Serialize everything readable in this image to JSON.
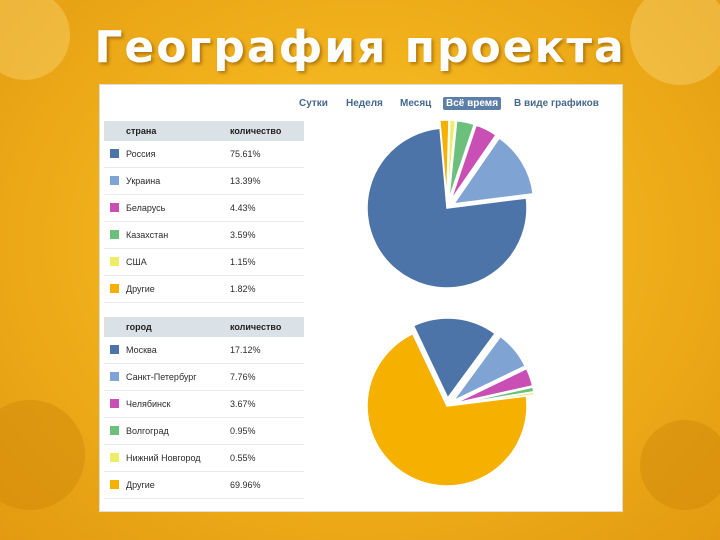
{
  "slide": {
    "title": "География проекта"
  },
  "tabs": [
    {
      "label": "Сутки",
      "active": false
    },
    {
      "label": "Неделя",
      "active": false
    },
    {
      "label": "Месяц",
      "active": false
    },
    {
      "label": "Всё время",
      "active": true
    },
    {
      "label": "В виде графиков",
      "active": false
    }
  ],
  "countries": {
    "header": {
      "name": "страна",
      "value": "количество"
    },
    "rows": [
      {
        "name": "Россия",
        "value": "75.61%",
        "color": "#4d74a8"
      },
      {
        "name": "Украина",
        "value": "13.39%",
        "color": "#7fa3d3"
      },
      {
        "name": "Беларусь",
        "value": "4.43%",
        "color": "#c94fb5"
      },
      {
        "name": "Казахстан",
        "value": "3.59%",
        "color": "#6cc07c"
      },
      {
        "name": "США",
        "value": "1.15%",
        "color": "#eded6a"
      },
      {
        "name": "Другие",
        "value": "1.82%",
        "color": "#f5b000"
      }
    ]
  },
  "cities": {
    "header": {
      "name": "город",
      "value": "количество"
    },
    "rows": [
      {
        "name": "Москва",
        "value": "17.12%",
        "color": "#4d74a8"
      },
      {
        "name": "Санкт-Петербург",
        "value": "7.76%",
        "color": "#7fa3d3"
      },
      {
        "name": "Челябинск",
        "value": "3.67%",
        "color": "#c94fb5"
      },
      {
        "name": "Волгоград",
        "value": "0.95%",
        "color": "#6cc07c"
      },
      {
        "name": "Нижний Новгород",
        "value": "0.55%",
        "color": "#eded6a"
      },
      {
        "name": "Другие",
        "value": "69.96%",
        "color": "#f5b000"
      }
    ]
  },
  "chart_data": [
    {
      "type": "pie",
      "categories": [
        "Россия",
        "Украина",
        "Беларусь",
        "Казахстан",
        "США",
        "Другие"
      ],
      "values": [
        75.61,
        13.39,
        4.43,
        3.59,
        1.15,
        1.82
      ],
      "colors": [
        "#4d74a8",
        "#7fa3d3",
        "#c94fb5",
        "#6cc07c",
        "#eded6a",
        "#f5b000"
      ],
      "exploded": true
    },
    {
      "type": "pie",
      "categories": [
        "Москва",
        "Санкт-Петербург",
        "Челябинск",
        "Волгоград",
        "Нижний Новгород",
        "Другие"
      ],
      "values": [
        17.12,
        7.76,
        3.67,
        0.95,
        0.55,
        69.96
      ],
      "colors": [
        "#4d74a8",
        "#7fa3d3",
        "#c94fb5",
        "#6cc07c",
        "#eded6a",
        "#f5b000"
      ],
      "exploded": true
    }
  ]
}
